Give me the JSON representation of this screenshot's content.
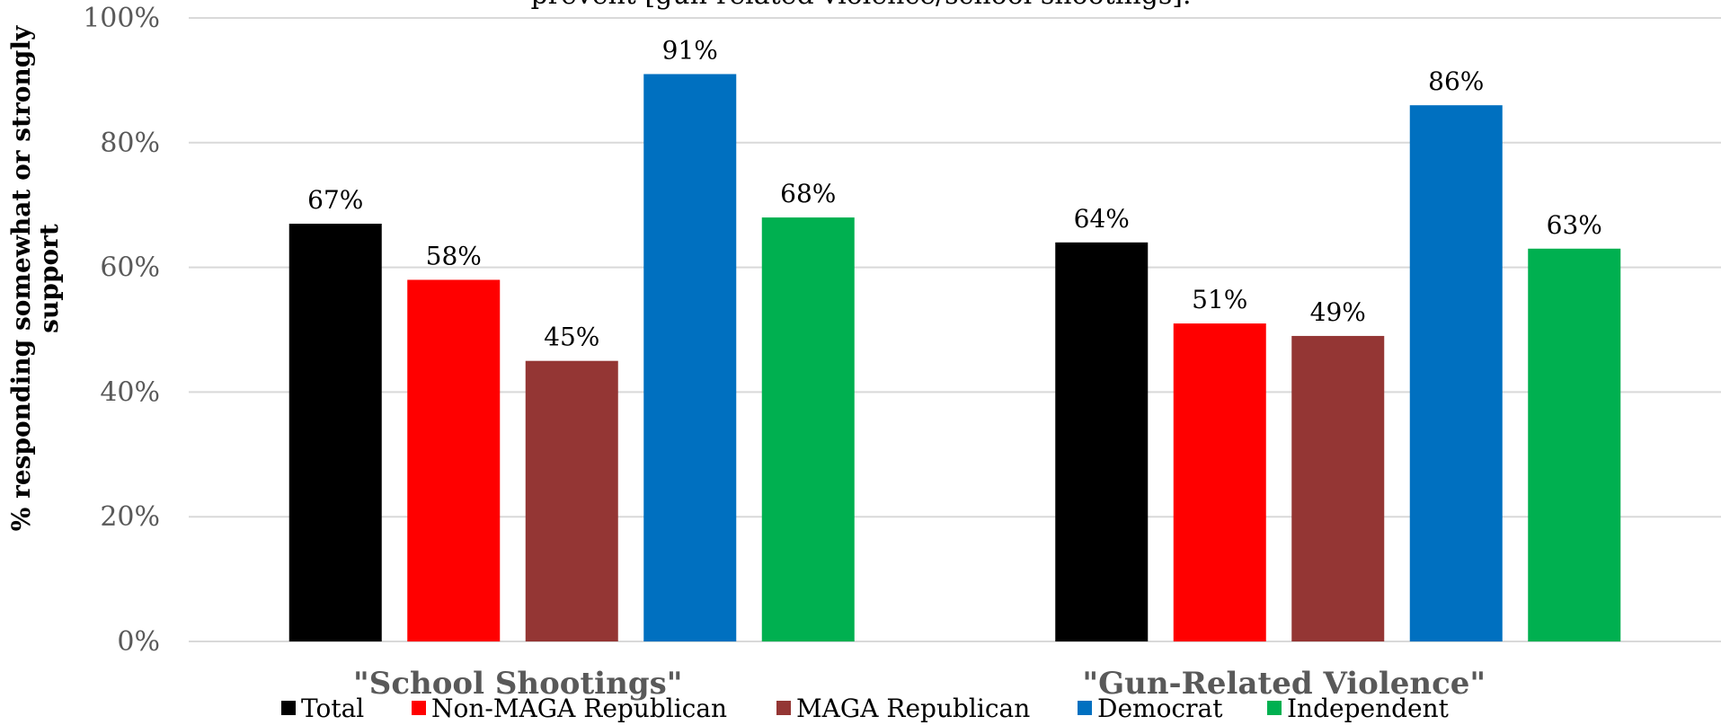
{
  "chart_data": {
    "type": "bar",
    "title": "prevent [gun-related violence/school shootings].",
    "xlabel": "",
    "ylabel_lines": [
      "% responding somewhat or strongly",
      "support"
    ],
    "ylim": [
      0,
      100
    ],
    "yticks": [
      "0%",
      "20%",
      "40%",
      "60%",
      "80%",
      "100%"
    ],
    "ytick_values": [
      0,
      20,
      40,
      60,
      80,
      100
    ],
    "grid": true,
    "legend_position": "bottom",
    "categories": [
      "\"School Shootings\"",
      "\"Gun-Related Violence\""
    ],
    "series": [
      {
        "name": "Total",
        "color": "#000000",
        "values": [
          67,
          64
        ],
        "labels": [
          "67%",
          "64%"
        ]
      },
      {
        "name": "Non-MAGA Republican",
        "color": "#ff0000",
        "values": [
          58,
          51
        ],
        "labels": [
          "58%",
          "51%"
        ]
      },
      {
        "name": "MAGA Republican",
        "color": "#943634",
        "values": [
          45,
          49
        ],
        "labels": [
          "45%",
          "49%"
        ]
      },
      {
        "name": "Democrat",
        "color": "#0070c0",
        "values": [
          91,
          86
        ],
        "labels": [
          "91%",
          "86%"
        ]
      },
      {
        "name": "Independent",
        "color": "#00b050",
        "values": [
          68,
          63
        ],
        "labels": [
          "68%",
          "63%"
        ]
      }
    ]
  }
}
